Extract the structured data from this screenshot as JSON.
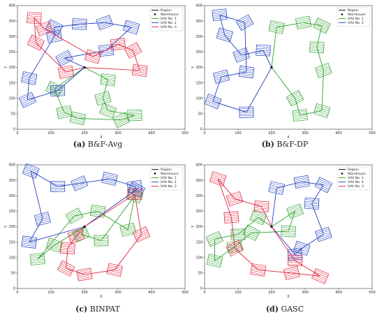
{
  "colors": {
    "uav1": "#2ca02c",
    "uav2": "#1f3fbf",
    "uav3": "#e0203a",
    "region": "#000000",
    "warehouse": "#000000"
  },
  "legend": {
    "region": "Region",
    "warehouse": "Warehouse",
    "uav1": "UAV No. 1",
    "uav2": "UAV No. 2",
    "uav3": "UAV No. 3"
  },
  "chart_data": [
    {
      "type": "line",
      "title": "",
      "caption_letter": "(a)",
      "caption_text": "B&F-Avg",
      "xlabel": "X",
      "ylabel": "Y",
      "xlim": [
        0,
        500
      ],
      "ylim": [
        0,
        400
      ],
      "xticks": [
        0,
        100,
        200,
        300,
        400,
        500
      ],
      "yticks": [
        0,
        50,
        100,
        150,
        200,
        250,
        300,
        350,
        400
      ],
      "legend_position": "top-right",
      "legend_entries": [
        "Region",
        "Warehouse",
        "UAV No. 1",
        "UAV No. 2",
        "UAV No. 3"
      ],
      "warehouse": [
        200,
        200
      ],
      "series": [
        {
          "name": "UAV No. 1",
          "points": [
            [
              200,
              200
            ],
            [
              270,
              160
            ],
            [
              255,
              100
            ],
            [
              270,
              60
            ],
            [
              350,
              45
            ],
            [
              310,
              30
            ],
            [
              180,
              35
            ],
            [
              140,
              55
            ],
            [
              110,
              130
            ],
            [
              200,
              200
            ]
          ]
        },
        {
          "name": "UAV No. 2",
          "points": [
            [
              200,
              200
            ],
            [
              120,
              125
            ],
            [
              30,
              95
            ],
            [
              35,
              165
            ],
            [
              110,
              300
            ],
            [
              110,
              330
            ],
            [
              185,
              340
            ],
            [
              260,
              345
            ],
            [
              340,
              330
            ],
            [
              265,
              255
            ],
            [
              140,
              230
            ],
            [
              200,
              200
            ]
          ]
        },
        {
          "name": "UAV No. 3",
          "points": [
            [
              200,
              200
            ],
            [
              145,
              185
            ],
            [
              55,
              280
            ],
            [
              50,
              360
            ],
            [
              80,
              325
            ],
            [
              225,
              235
            ],
            [
              300,
              275
            ],
            [
              345,
              255
            ],
            [
              365,
              190
            ],
            [
              200,
              200
            ]
          ]
        }
      ]
    },
    {
      "type": "line",
      "title": "",
      "caption_letter": "(b)",
      "caption_text": "B&F-DP",
      "xlabel": "X",
      "ylabel": "Y",
      "xlim": [
        0,
        500
      ],
      "ylim": [
        0,
        400
      ],
      "xticks": [
        0,
        100,
        200,
        300,
        400,
        500
      ],
      "yticks": [
        0,
        50,
        100,
        150,
        200,
        250,
        300,
        350,
        400
      ],
      "legend_position": "top-right",
      "legend_entries": [
        "Region",
        "Warehouse",
        "UAV No. 1",
        "UAV No. 2"
      ],
      "warehouse": [
        200,
        200
      ],
      "series": [
        {
          "name": "UAV No. 1",
          "points": [
            [
              200,
              200
            ],
            [
              215,
              330
            ],
            [
              295,
              345
            ],
            [
              350,
              335
            ],
            [
              335,
              265
            ],
            [
              355,
              190
            ],
            [
              350,
              60
            ],
            [
              285,
              45
            ],
            [
              270,
              100
            ],
            [
              200,
              200
            ]
          ]
        },
        {
          "name": "UAV No. 2",
          "points": [
            [
              200,
              200
            ],
            [
              175,
              255
            ],
            [
              110,
              240
            ],
            [
              60,
              305
            ],
            [
              45,
              370
            ],
            [
              120,
              345
            ],
            [
              125,
              185
            ],
            [
              50,
              170
            ],
            [
              25,
              90
            ],
            [
              125,
              55
            ],
            [
              200,
              200
            ]
          ]
        }
      ]
    },
    {
      "type": "line",
      "title": "",
      "caption_letter": "(c)",
      "caption_text": "BINPAT",
      "xlabel": "X",
      "ylabel": "Y",
      "xlim": [
        0,
        500
      ],
      "ylim": [
        0,
        400
      ],
      "xticks": [
        0,
        100,
        200,
        300,
        400,
        500
      ],
      "yticks": [
        0,
        50,
        100,
        150,
        200,
        250,
        300,
        350,
        400
      ],
      "legend_position": "top-right",
      "legend_entries": [
        "Region",
        "Warehouse",
        "UAV No. 1",
        "UAV No. 2",
        "UAV No. 3"
      ],
      "warehouse": [
        200,
        200
      ],
      "series": [
        {
          "name": "UAV No. 1",
          "points": [
            [
              200,
              200
            ],
            [
              110,
              140
            ],
            [
              60,
              95
            ],
            [
              170,
              235
            ],
            [
              240,
              250
            ],
            [
              330,
              190
            ],
            [
              350,
              300
            ],
            [
              250,
              155
            ],
            [
              190,
              175
            ],
            [
              200,
              200
            ]
          ]
        },
        {
          "name": "UAV No. 2",
          "points": [
            [
              200,
              200
            ],
            [
              35,
              150
            ],
            [
              75,
              225
            ],
            [
              40,
              380
            ],
            [
              120,
              330
            ],
            [
              185,
              340
            ],
            [
              275,
              355
            ],
            [
              350,
              330
            ],
            [
              355,
              320
            ],
            [
              200,
              200
            ]
          ]
        },
        {
          "name": "UAV No. 3",
          "points": [
            [
              200,
              200
            ],
            [
              350,
              305
            ],
            [
              370,
              175
            ],
            [
              290,
              60
            ],
            [
              200,
              45
            ],
            [
              145,
              65
            ],
            [
              150,
              130
            ],
            [
              175,
              170
            ],
            [
              200,
              200
            ]
          ]
        }
      ]
    },
    {
      "type": "line",
      "title": "",
      "caption_letter": "(d)",
      "caption_text": "GASC",
      "xlabel": "X",
      "ylabel": "Y",
      "xlim": [
        0,
        500
      ],
      "ylim": [
        0,
        400
      ],
      "xticks": [
        0,
        100,
        200,
        300,
        400,
        500
      ],
      "yticks": [
        0,
        50,
        100,
        150,
        200,
        250,
        300,
        350,
        400
      ],
      "legend_position": "top-right",
      "legend_entries": [
        "Region",
        "Warehouse",
        "UAV No. 1",
        "UAV No. 2",
        "UAV No. 3"
      ],
      "warehouse": [
        200,
        200
      ],
      "series": [
        {
          "name": "UAV No. 1",
          "points": [
            [
              200,
              200
            ],
            [
              160,
              230
            ],
            [
              100,
              175
            ],
            [
              30,
              160
            ],
            [
              30,
              90
            ],
            [
              90,
              135
            ],
            [
              140,
              180
            ],
            [
              250,
              185
            ],
            [
              270,
              250
            ],
            [
              200,
              200
            ]
          ]
        },
        {
          "name": "UAV No. 2",
          "points": [
            [
              200,
              200
            ],
            [
              215,
              325
            ],
            [
              290,
              345
            ],
            [
              355,
              335
            ],
            [
              320,
              275
            ],
            [
              355,
              175
            ],
            [
              290,
              130
            ],
            [
              270,
              110
            ],
            [
              200,
              200
            ]
          ]
        },
        {
          "name": "UAV No. 3",
          "points": [
            [
              200,
              200
            ],
            [
              170,
              265
            ],
            [
              90,
              290
            ],
            [
              40,
              355
            ],
            [
              80,
              230
            ],
            [
              90,
              130
            ],
            [
              160,
              60
            ],
            [
              260,
              50
            ],
            [
              345,
              40
            ],
            [
              270,
              90
            ],
            [
              200,
              200
            ]
          ]
        }
      ]
    }
  ]
}
